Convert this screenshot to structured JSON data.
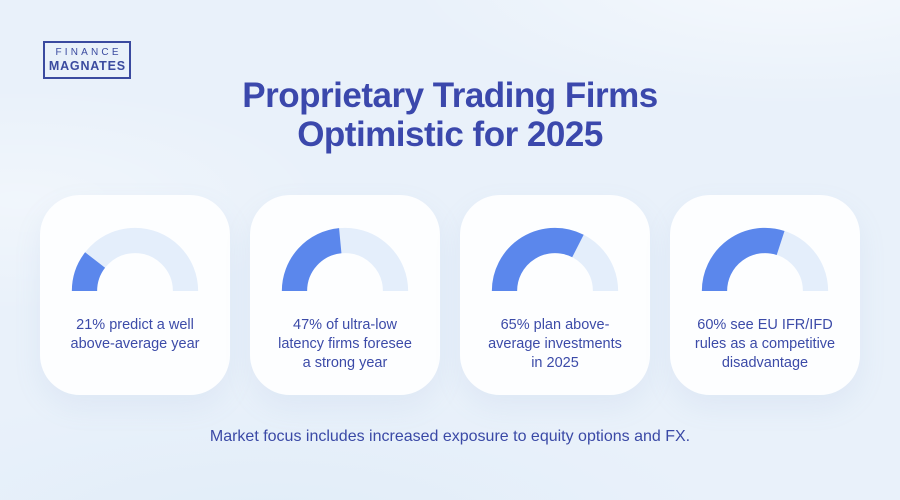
{
  "logo": {
    "line1": "FINANCE",
    "line2": "MAGNATES",
    "color": "#3A4A9F"
  },
  "header": {
    "title_lines": [
      "Proprietary Trading Firms",
      "Optimistic for 2025"
    ],
    "title_color": "#3B48AC"
  },
  "footer": {
    "text": "Market focus includes increased exposure to equity options and FX."
  },
  "colors": {
    "page_background": "#E9F1FA",
    "card_background": "#FDFEFF",
    "text_blue": "#3C4BA8"
  },
  "chart_data": {
    "type": "gauge",
    "title": "Proprietary Trading Firms Optimistic for 2025",
    "unit": "%",
    "range": [
      0,
      100
    ],
    "fill_color": "#5B87EC",
    "track_color": "#E4EEFB",
    "gauges": [
      {
        "value": 21,
        "label_lines": [
          "21% predict a well",
          "above-average year"
        ]
      },
      {
        "value": 47,
        "label_lines": [
          "47% of ultra-low",
          "latency firms foresee",
          "a strong year"
        ]
      },
      {
        "value": 65,
        "label_lines": [
          "65% plan above-",
          "average investments",
          "in 2025"
        ]
      },
      {
        "value": 60,
        "label_lines": [
          "60% see EU IFR/IFD",
          "rules as a competitive",
          "disadvantage"
        ]
      }
    ]
  }
}
